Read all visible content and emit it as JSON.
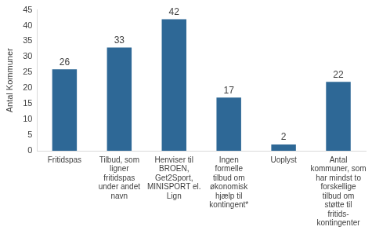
{
  "chart_data": {
    "type": "bar",
    "y_label": "Antal Kommuner",
    "categories": [
      "Fritidspas",
      "Tilbud, som ligner fritidspas under andet navn",
      "Henviser til BROEN, Get2Sport, MINISPORT el. Lign",
      "Ingen formelle tilbud om økonomisk hjælp til kontingent*",
      "Uoplyst",
      "Antal kommuner, som har mindst to forskellige tilbud om støtte til fritids- kontingenter"
    ],
    "values": [
      26,
      33,
      42,
      17,
      2,
      22
    ],
    "color": "#2e6896",
    "ylim": [
      0,
      45
    ],
    "yticks": [
      0,
      5,
      10,
      15,
      20,
      25,
      30,
      35,
      40,
      45
    ],
    "grid": false,
    "data_labels": true
  }
}
